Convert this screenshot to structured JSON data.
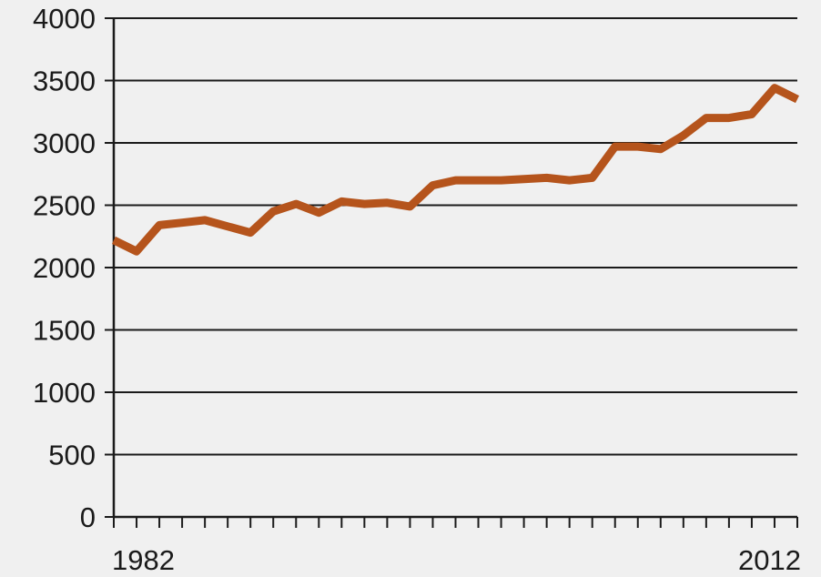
{
  "chart_data": {
    "type": "line",
    "title": "",
    "xlabel": "",
    "ylabel": "",
    "xlim": [
      1982,
      2012
    ],
    "ylim": [
      0,
      4000
    ],
    "yticks": [
      "0",
      "500",
      "1000",
      "1500",
      "2000",
      "2500",
      "3000",
      "3500",
      "4000"
    ],
    "xtick_labels": [
      "1982",
      "2012"
    ],
    "grid": "horizontal",
    "legend": "none",
    "series": [
      {
        "color": "#b5541c",
        "x": [
          1982,
          1983,
          1984,
          1985,
          1986,
          1987,
          1988,
          1989,
          1990,
          1991,
          1992,
          1993,
          1994,
          1995,
          1996,
          1997,
          1998,
          1999,
          2000,
          2001,
          2002,
          2003,
          2004,
          2005,
          2006,
          2007,
          2008,
          2009,
          2010,
          2011,
          2012
        ],
        "y": [
          2220,
          2130,
          2340,
          2360,
          2380,
          2330,
          2280,
          2450,
          2510,
          2440,
          2530,
          2510,
          2520,
          2490,
          2660,
          2700,
          2700,
          2700,
          2710,
          2720,
          2700,
          2720,
          2970,
          2970,
          2950,
          3060,
          3200,
          3200,
          3230,
          3440,
          3350
        ]
      }
    ]
  }
}
